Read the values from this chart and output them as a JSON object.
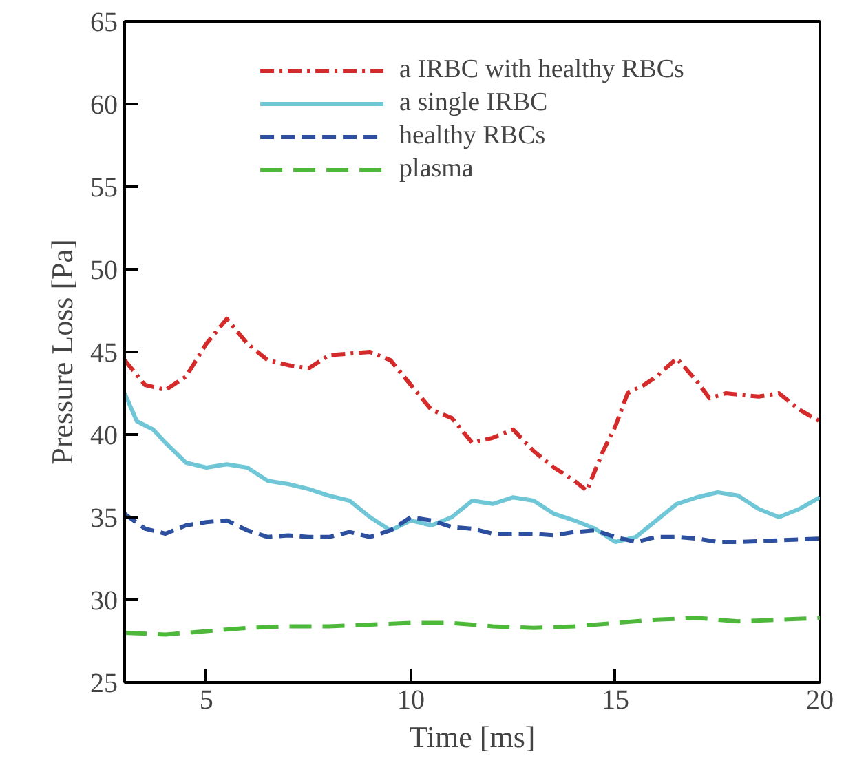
{
  "chart_data": {
    "type": "line",
    "xlabel": "Time [ms]",
    "ylabel": "Pressure Loss [Pa]",
    "xlim": [
      3,
      20
    ],
    "ylim": [
      25,
      65
    ],
    "xticks": [
      5,
      10,
      15,
      20
    ],
    "yticks": [
      25,
      30,
      35,
      40,
      45,
      50,
      55,
      60,
      65
    ],
    "grid": false,
    "legend": "top",
    "marker": "none",
    "series": [
      {
        "name": "a IRBC with healthy RBCs",
        "color": "#d42a2a",
        "line_style": "dashdot",
        "x": [
          3,
          3.5,
          4,
          4.5,
          5,
          5.5,
          6,
          6.5,
          7,
          7.5,
          8,
          8.5,
          9,
          9.5,
          10,
          10.5,
          11,
          11.5,
          12,
          12.5,
          13,
          13.5,
          14,
          14.3,
          14.7,
          15,
          15.3,
          15.7,
          16,
          16.5,
          17,
          17.3,
          17.7,
          18.5,
          19,
          19.5,
          20
        ],
        "values": [
          44.5,
          43,
          42.7,
          43.5,
          45.5,
          47,
          45.5,
          44.5,
          44.2,
          44,
          44.8,
          44.9,
          45,
          44.5,
          43,
          41.5,
          41,
          39.5,
          39.8,
          40.3,
          39,
          38,
          37.2,
          36.6,
          39,
          40.5,
          42.5,
          43,
          43.5,
          44.6,
          43.2,
          42.2,
          42.5,
          42.3,
          42.5,
          41.5,
          40.8
        ]
      },
      {
        "name": "a single IRBC",
        "color": "#6ec6d6",
        "line_style": "solid",
        "x": [
          3,
          3.3,
          3.7,
          4,
          4.5,
          5,
          5.5,
          6,
          6.5,
          7,
          7.5,
          8,
          8.5,
          9,
          9.5,
          10,
          10.5,
          11,
          11.5,
          12,
          12.5,
          13,
          13.5,
          14,
          14.5,
          15,
          15.5,
          16,
          16.5,
          17,
          17.5,
          18,
          18.5,
          19,
          19.5,
          20
        ],
        "values": [
          42.5,
          40.8,
          40.3,
          39.5,
          38.3,
          38,
          38.2,
          38,
          37.2,
          37,
          36.7,
          36.3,
          36,
          35,
          34.2,
          34.8,
          34.5,
          35,
          36,
          35.8,
          36.2,
          36,
          35.2,
          34.8,
          34.3,
          33.5,
          33.8,
          34.8,
          35.8,
          36.2,
          36.5,
          36.3,
          35.5,
          35,
          35.5,
          36.2
        ]
      },
      {
        "name": "healthy RBCs",
        "color": "#2d4fa0",
        "line_style": "dashed",
        "x": [
          3,
          3.5,
          4,
          4.5,
          5,
          5.5,
          6,
          6.5,
          7,
          7.5,
          8,
          8.5,
          9,
          9.5,
          10,
          10.5,
          11,
          11.5,
          12,
          12.5,
          13,
          13.5,
          14,
          14.5,
          15,
          15.5,
          16,
          16.5,
          17,
          17.5,
          18,
          19,
          20
        ],
        "values": [
          35.2,
          34.3,
          34,
          34.5,
          34.7,
          34.8,
          34.2,
          33.8,
          33.9,
          33.8,
          33.8,
          34.1,
          33.8,
          34.2,
          35,
          34.8,
          34.4,
          34.3,
          34,
          34,
          34,
          33.9,
          34.1,
          34.2,
          33.8,
          33.5,
          33.8,
          33.8,
          33.7,
          33.5,
          33.5,
          33.6,
          33.7
        ]
      },
      {
        "name": "plasma",
        "color": "#4db83a",
        "line_style": "longdashed",
        "x": [
          3,
          4,
          5,
          6,
          7,
          8,
          9,
          10,
          11,
          12,
          13,
          14,
          15,
          16,
          17,
          18,
          19,
          20
        ],
        "values": [
          28,
          27.9,
          28.1,
          28.3,
          28.4,
          28.4,
          28.5,
          28.6,
          28.6,
          28.4,
          28.3,
          28.4,
          28.6,
          28.8,
          28.9,
          28.7,
          28.8,
          28.9
        ]
      }
    ]
  }
}
